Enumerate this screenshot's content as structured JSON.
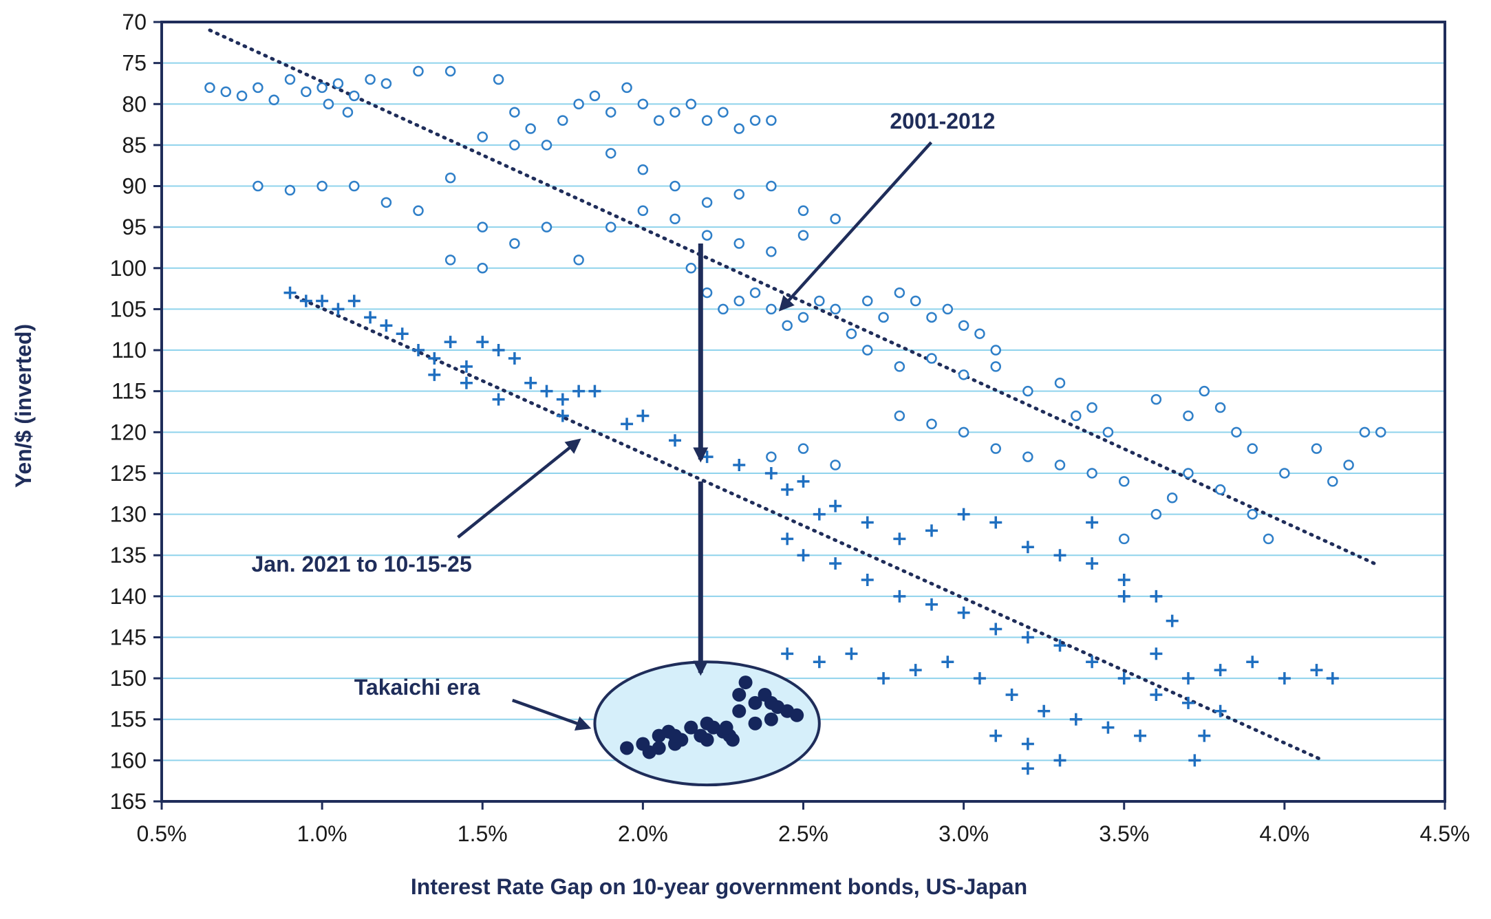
{
  "chart_data": {
    "type": "scatter",
    "xlabel": "Interest Rate Gap on 10-year government bonds, US-Japan",
    "ylabel": "Yen/$ (inverted)",
    "xlim": [
      0.5,
      4.5
    ],
    "ylim": [
      70,
      165
    ],
    "y_inverted": true,
    "x_ticks": [
      0.5,
      1.0,
      1.5,
      2.0,
      2.5,
      3.0,
      3.5,
      4.0,
      4.5
    ],
    "x_tick_labels": [
      "0.5%",
      "1.0%",
      "1.5%",
      "2.0%",
      "2.5%",
      "3.0%",
      "3.5%",
      "4.0%",
      "4.5%"
    ],
    "y_ticks": [
      70,
      75,
      80,
      85,
      90,
      95,
      100,
      105,
      110,
      115,
      120,
      125,
      130,
      135,
      140,
      145,
      150,
      155,
      160,
      165
    ],
    "y_tick_labels": [
      "70",
      "75",
      "80",
      "85",
      "90",
      "95",
      "100",
      "105",
      "110",
      "115",
      "120",
      "125",
      "130",
      "135",
      "140",
      "145",
      "150",
      "155",
      "160",
      "165"
    ],
    "grid": "horizontal",
    "colors": {
      "circles": "#2f7fc8",
      "plus": "#1f6fc0",
      "takaichi": "#15265c",
      "navy": "#1f2d5a",
      "gridline": "#8fd3ec",
      "ellipse_fill": "#d6effa"
    },
    "series": [
      {
        "marker": "circle-open",
        "points": [
          [
            0.65,
            78
          ],
          [
            0.7,
            78.5
          ],
          [
            0.75,
            79
          ],
          [
            0.8,
            78
          ],
          [
            0.85,
            79.5
          ],
          [
            0.9,
            77
          ],
          [
            0.95,
            78.5
          ],
          [
            1.0,
            78
          ],
          [
            1.02,
            80
          ],
          [
            1.05,
            77.5
          ],
          [
            1.08,
            81
          ],
          [
            1.1,
            79
          ],
          [
            1.15,
            77
          ],
          [
            1.2,
            77.5
          ],
          [
            1.3,
            76
          ],
          [
            1.4,
            76
          ],
          [
            1.55,
            77
          ],
          [
            1.6,
            81
          ],
          [
            1.65,
            83
          ],
          [
            1.7,
            85
          ],
          [
            1.75,
            82
          ],
          [
            1.8,
            80
          ],
          [
            1.85,
            79
          ],
          [
            1.9,
            81
          ],
          [
            1.95,
            78
          ],
          [
            2.0,
            80
          ],
          [
            2.05,
            82
          ],
          [
            2.1,
            81
          ],
          [
            2.15,
            80
          ],
          [
            2.2,
            82
          ],
          [
            2.25,
            81
          ],
          [
            2.3,
            83
          ],
          [
            2.35,
            82
          ],
          [
            2.4,
            82
          ],
          [
            1.5,
            84
          ],
          [
            1.6,
            85
          ],
          [
            1.9,
            86
          ],
          [
            2.0,
            88
          ],
          [
            2.1,
            90
          ],
          [
            2.2,
            92
          ],
          [
            2.3,
            91
          ],
          [
            2.4,
            90
          ],
          [
            2.5,
            93
          ],
          [
            2.6,
            94
          ],
          [
            0.8,
            90
          ],
          [
            0.9,
            90.5
          ],
          [
            1.0,
            90
          ],
          [
            1.1,
            90
          ],
          [
            1.2,
            92
          ],
          [
            1.3,
            93
          ],
          [
            1.4,
            89
          ],
          [
            1.5,
            95
          ],
          [
            1.6,
            97
          ],
          [
            1.7,
            95
          ],
          [
            1.8,
            99
          ],
          [
            1.4,
            99
          ],
          [
            1.5,
            100
          ],
          [
            1.9,
            95
          ],
          [
            2.0,
            93
          ],
          [
            2.1,
            94
          ],
          [
            2.2,
            96
          ],
          [
            2.3,
            97
          ],
          [
            2.4,
            98
          ],
          [
            2.5,
            96
          ],
          [
            2.15,
            100
          ],
          [
            2.2,
            103
          ],
          [
            2.25,
            105
          ],
          [
            2.3,
            104
          ],
          [
            2.35,
            103
          ],
          [
            2.4,
            105
          ],
          [
            2.45,
            107
          ],
          [
            2.5,
            106
          ],
          [
            2.55,
            104
          ],
          [
            2.6,
            105
          ],
          [
            2.65,
            108
          ],
          [
            2.7,
            104
          ],
          [
            2.75,
            106
          ],
          [
            2.8,
            103
          ],
          [
            2.85,
            104
          ],
          [
            2.9,
            106
          ],
          [
            2.95,
            105
          ],
          [
            3.0,
            107
          ],
          [
            3.05,
            108
          ],
          [
            3.1,
            110
          ],
          [
            2.7,
            110
          ],
          [
            2.8,
            112
          ],
          [
            2.9,
            111
          ],
          [
            3.0,
            113
          ],
          [
            3.1,
            112
          ],
          [
            3.2,
            115
          ],
          [
            3.3,
            114
          ],
          [
            3.35,
            118
          ],
          [
            3.4,
            117
          ],
          [
            3.45,
            120
          ],
          [
            2.8,
            118
          ],
          [
            2.9,
            119
          ],
          [
            3.0,
            120
          ],
          [
            3.1,
            122
          ],
          [
            3.2,
            123
          ],
          [
            3.3,
            124
          ],
          [
            3.4,
            125
          ],
          [
            3.5,
            126
          ],
          [
            2.4,
            123
          ],
          [
            2.5,
            122
          ],
          [
            2.6,
            124
          ],
          [
            3.6,
            116
          ],
          [
            3.7,
            118
          ],
          [
            3.75,
            115
          ],
          [
            3.8,
            117
          ],
          [
            3.85,
            120
          ],
          [
            3.9,
            122
          ],
          [
            3.7,
            125
          ],
          [
            3.8,
            127
          ],
          [
            3.9,
            130
          ],
          [
            3.95,
            133
          ],
          [
            4.0,
            125
          ],
          [
            4.1,
            122
          ],
          [
            4.2,
            124
          ],
          [
            4.25,
            120
          ],
          [
            4.3,
            120
          ],
          [
            4.15,
            126
          ],
          [
            3.5,
            133
          ],
          [
            3.6,
            130
          ],
          [
            3.65,
            128
          ]
        ]
      },
      {
        "marker": "plus",
        "points": [
          [
            0.9,
            103
          ],
          [
            0.95,
            104
          ],
          [
            1.0,
            104
          ],
          [
            1.05,
            105
          ],
          [
            1.1,
            104
          ],
          [
            1.15,
            106
          ],
          [
            1.2,
            107
          ],
          [
            1.25,
            108
          ],
          [
            1.3,
            110
          ],
          [
            1.35,
            111
          ],
          [
            1.4,
            109
          ],
          [
            1.45,
            112
          ],
          [
            1.5,
            109
          ],
          [
            1.55,
            110
          ],
          [
            1.6,
            111
          ],
          [
            1.65,
            114
          ],
          [
            1.7,
            115
          ],
          [
            1.75,
            116
          ],
          [
            1.8,
            115
          ],
          [
            1.85,
            115
          ],
          [
            1.35,
            113
          ],
          [
            1.45,
            114
          ],
          [
            1.55,
            116
          ],
          [
            1.75,
            118
          ],
          [
            1.95,
            119
          ],
          [
            2.0,
            118
          ],
          [
            2.1,
            121
          ],
          [
            2.2,
            123
          ],
          [
            2.3,
            124
          ],
          [
            2.4,
            125
          ],
          [
            2.45,
            127
          ],
          [
            2.5,
            126
          ],
          [
            2.55,
            130
          ],
          [
            2.6,
            129
          ],
          [
            2.7,
            131
          ],
          [
            2.8,
            133
          ],
          [
            2.9,
            132
          ],
          [
            3.0,
            130
          ],
          [
            3.1,
            131
          ],
          [
            3.2,
            134
          ],
          [
            3.3,
            135
          ],
          [
            3.4,
            136
          ],
          [
            3.5,
            138
          ],
          [
            3.6,
            140
          ],
          [
            3.65,
            143
          ],
          [
            3.4,
            131
          ],
          [
            3.5,
            140
          ],
          [
            2.45,
            133
          ],
          [
            2.5,
            135
          ],
          [
            2.6,
            136
          ],
          [
            2.7,
            138
          ],
          [
            2.8,
            140
          ],
          [
            2.9,
            141
          ],
          [
            3.0,
            142
          ],
          [
            3.1,
            144
          ],
          [
            3.2,
            145
          ],
          [
            3.3,
            146
          ],
          [
            3.4,
            148
          ],
          [
            3.5,
            150
          ],
          [
            3.6,
            152
          ],
          [
            3.7,
            150
          ],
          [
            3.8,
            149
          ],
          [
            3.9,
            148
          ],
          [
            4.0,
            150
          ],
          [
            4.1,
            149
          ],
          [
            4.15,
            150
          ],
          [
            2.45,
            147
          ],
          [
            2.55,
            148
          ],
          [
            2.65,
            147
          ],
          [
            2.75,
            150
          ],
          [
            2.85,
            149
          ],
          [
            2.95,
            148
          ],
          [
            3.05,
            150
          ],
          [
            3.15,
            152
          ],
          [
            3.25,
            154
          ],
          [
            3.35,
            155
          ],
          [
            3.45,
            156
          ],
          [
            3.55,
            157
          ],
          [
            3.2,
            158
          ],
          [
            3.3,
            160
          ],
          [
            3.2,
            161
          ],
          [
            3.1,
            157
          ],
          [
            3.6,
            147
          ],
          [
            3.7,
            153
          ],
          [
            3.75,
            157
          ],
          [
            3.8,
            154
          ],
          [
            3.72,
            160
          ]
        ]
      },
      {
        "marker": "circle-filled",
        "points": [
          [
            1.95,
            158.5
          ],
          [
            2.0,
            158
          ],
          [
            2.02,
            159
          ],
          [
            2.05,
            157
          ],
          [
            2.08,
            156.5
          ],
          [
            2.1,
            158
          ],
          [
            2.12,
            157.5
          ],
          [
            2.15,
            156
          ],
          [
            2.18,
            157
          ],
          [
            2.2,
            155.5
          ],
          [
            2.22,
            156
          ],
          [
            2.25,
            156.5
          ],
          [
            2.27,
            157
          ],
          [
            2.3,
            154
          ],
          [
            2.3,
            152
          ],
          [
            2.32,
            150.5
          ],
          [
            2.35,
            153
          ],
          [
            2.38,
            152
          ],
          [
            2.4,
            155
          ],
          [
            2.42,
            153.5
          ],
          [
            2.45,
            154
          ],
          [
            2.48,
            154.5
          ],
          [
            2.1,
            157
          ],
          [
            2.05,
            158.5
          ],
          [
            2.2,
            157.5
          ],
          [
            2.26,
            156
          ],
          [
            2.28,
            157.5
          ],
          [
            2.35,
            155.5
          ],
          [
            2.4,
            153
          ]
        ]
      }
    ],
    "trend_lines": [
      {
        "label": "2001-2012",
        "from": [
          0.65,
          71
        ],
        "to": [
          4.28,
          136
        ]
      },
      {
        "label": "Jan. 2021 to 10-15-25",
        "from": [
          0.92,
          103.5
        ],
        "to": [
          4.12,
          160
        ]
      }
    ],
    "annotations": [
      {
        "text": "2001-2012",
        "pos": [
          2.77,
          83
        ],
        "arrow_to": [
          2.43,
          105
        ]
      },
      {
        "text": "Jan. 2021 to 10-15-25",
        "pos": [
          0.78,
          137
        ],
        "arrow_to": [
          1.8,
          121
        ]
      },
      {
        "text": "Takaichi era",
        "pos": [
          1.1,
          152
        ],
        "arrow_to": [
          1.83,
          156
        ]
      }
    ],
    "vertical_arrow": {
      "x": 2.18,
      "from": 97,
      "to": 150,
      "breaks": [
        [
          124,
          126
        ]
      ]
    },
    "highlight_ellipse": {
      "center": [
        2.2,
        155.5
      ],
      "rx": 0.35,
      "ry": 7.5
    }
  }
}
